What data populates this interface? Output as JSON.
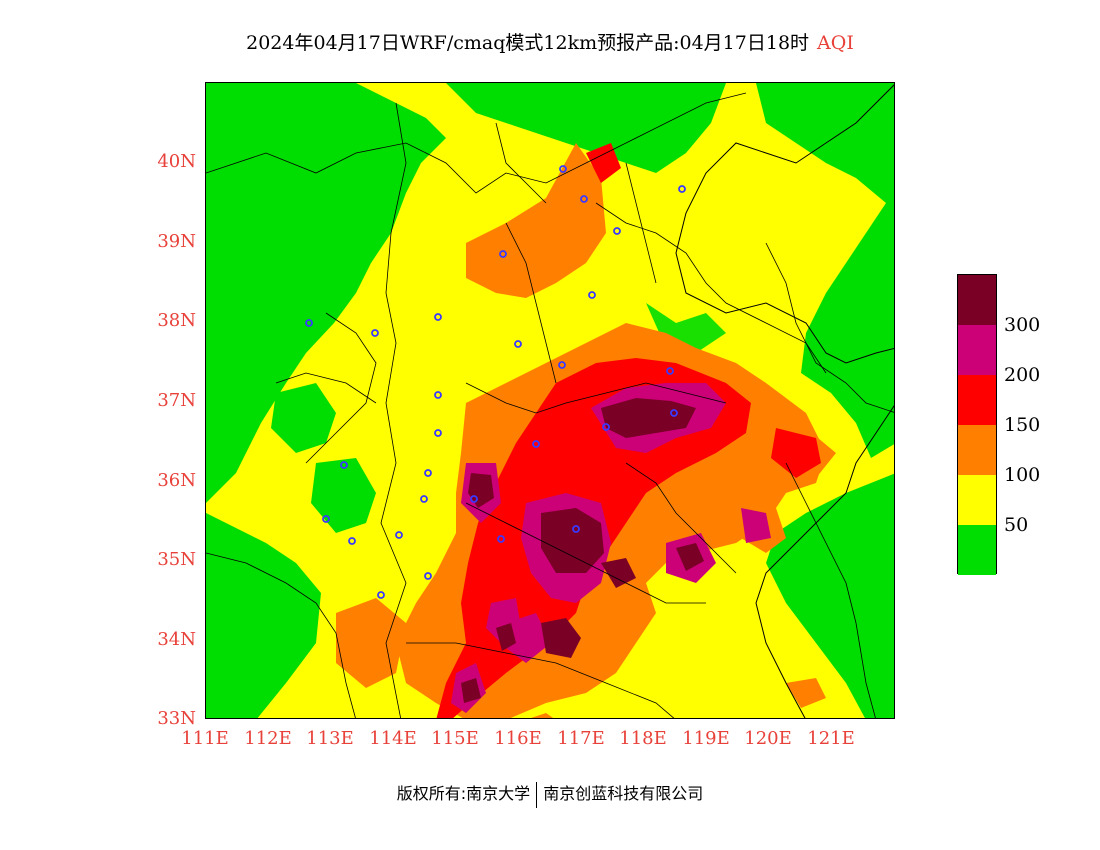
{
  "title": {
    "main": "2024年04月17日WRF/cmaq模式12km预报产品:04月17日18时",
    "variable": "AQI"
  },
  "axes": {
    "lon_labels": [
      "111E",
      "112E",
      "113E",
      "114E",
      "115E",
      "116E",
      "117E",
      "118E",
      "119E",
      "120E",
      "121E"
    ],
    "lat_labels": [
      "40N",
      "39N",
      "38N",
      "37N",
      "36N",
      "35N",
      "34N",
      "33N"
    ]
  },
  "legend": {
    "labels": [
      "300",
      "200",
      "150",
      "100",
      "50"
    ],
    "colors": [
      "#7a0026",
      "#cc0077",
      "#ff0000",
      "#ff8000",
      "#ffff00",
      "#00dd00"
    ]
  },
  "footer": {
    "left": "版权所有:南京大学",
    "right": "南京创蓝科技有限公司"
  },
  "colors": {
    "good": "#00dd00",
    "moderate": "#ffff00",
    "usg": "#ff8000",
    "unhealthy": "#ff0000",
    "very_unhealthy": "#cc0077",
    "hazardous": "#7a0026",
    "station_marker": "#3a3aff",
    "tick_text": "#e8413a"
  }
}
